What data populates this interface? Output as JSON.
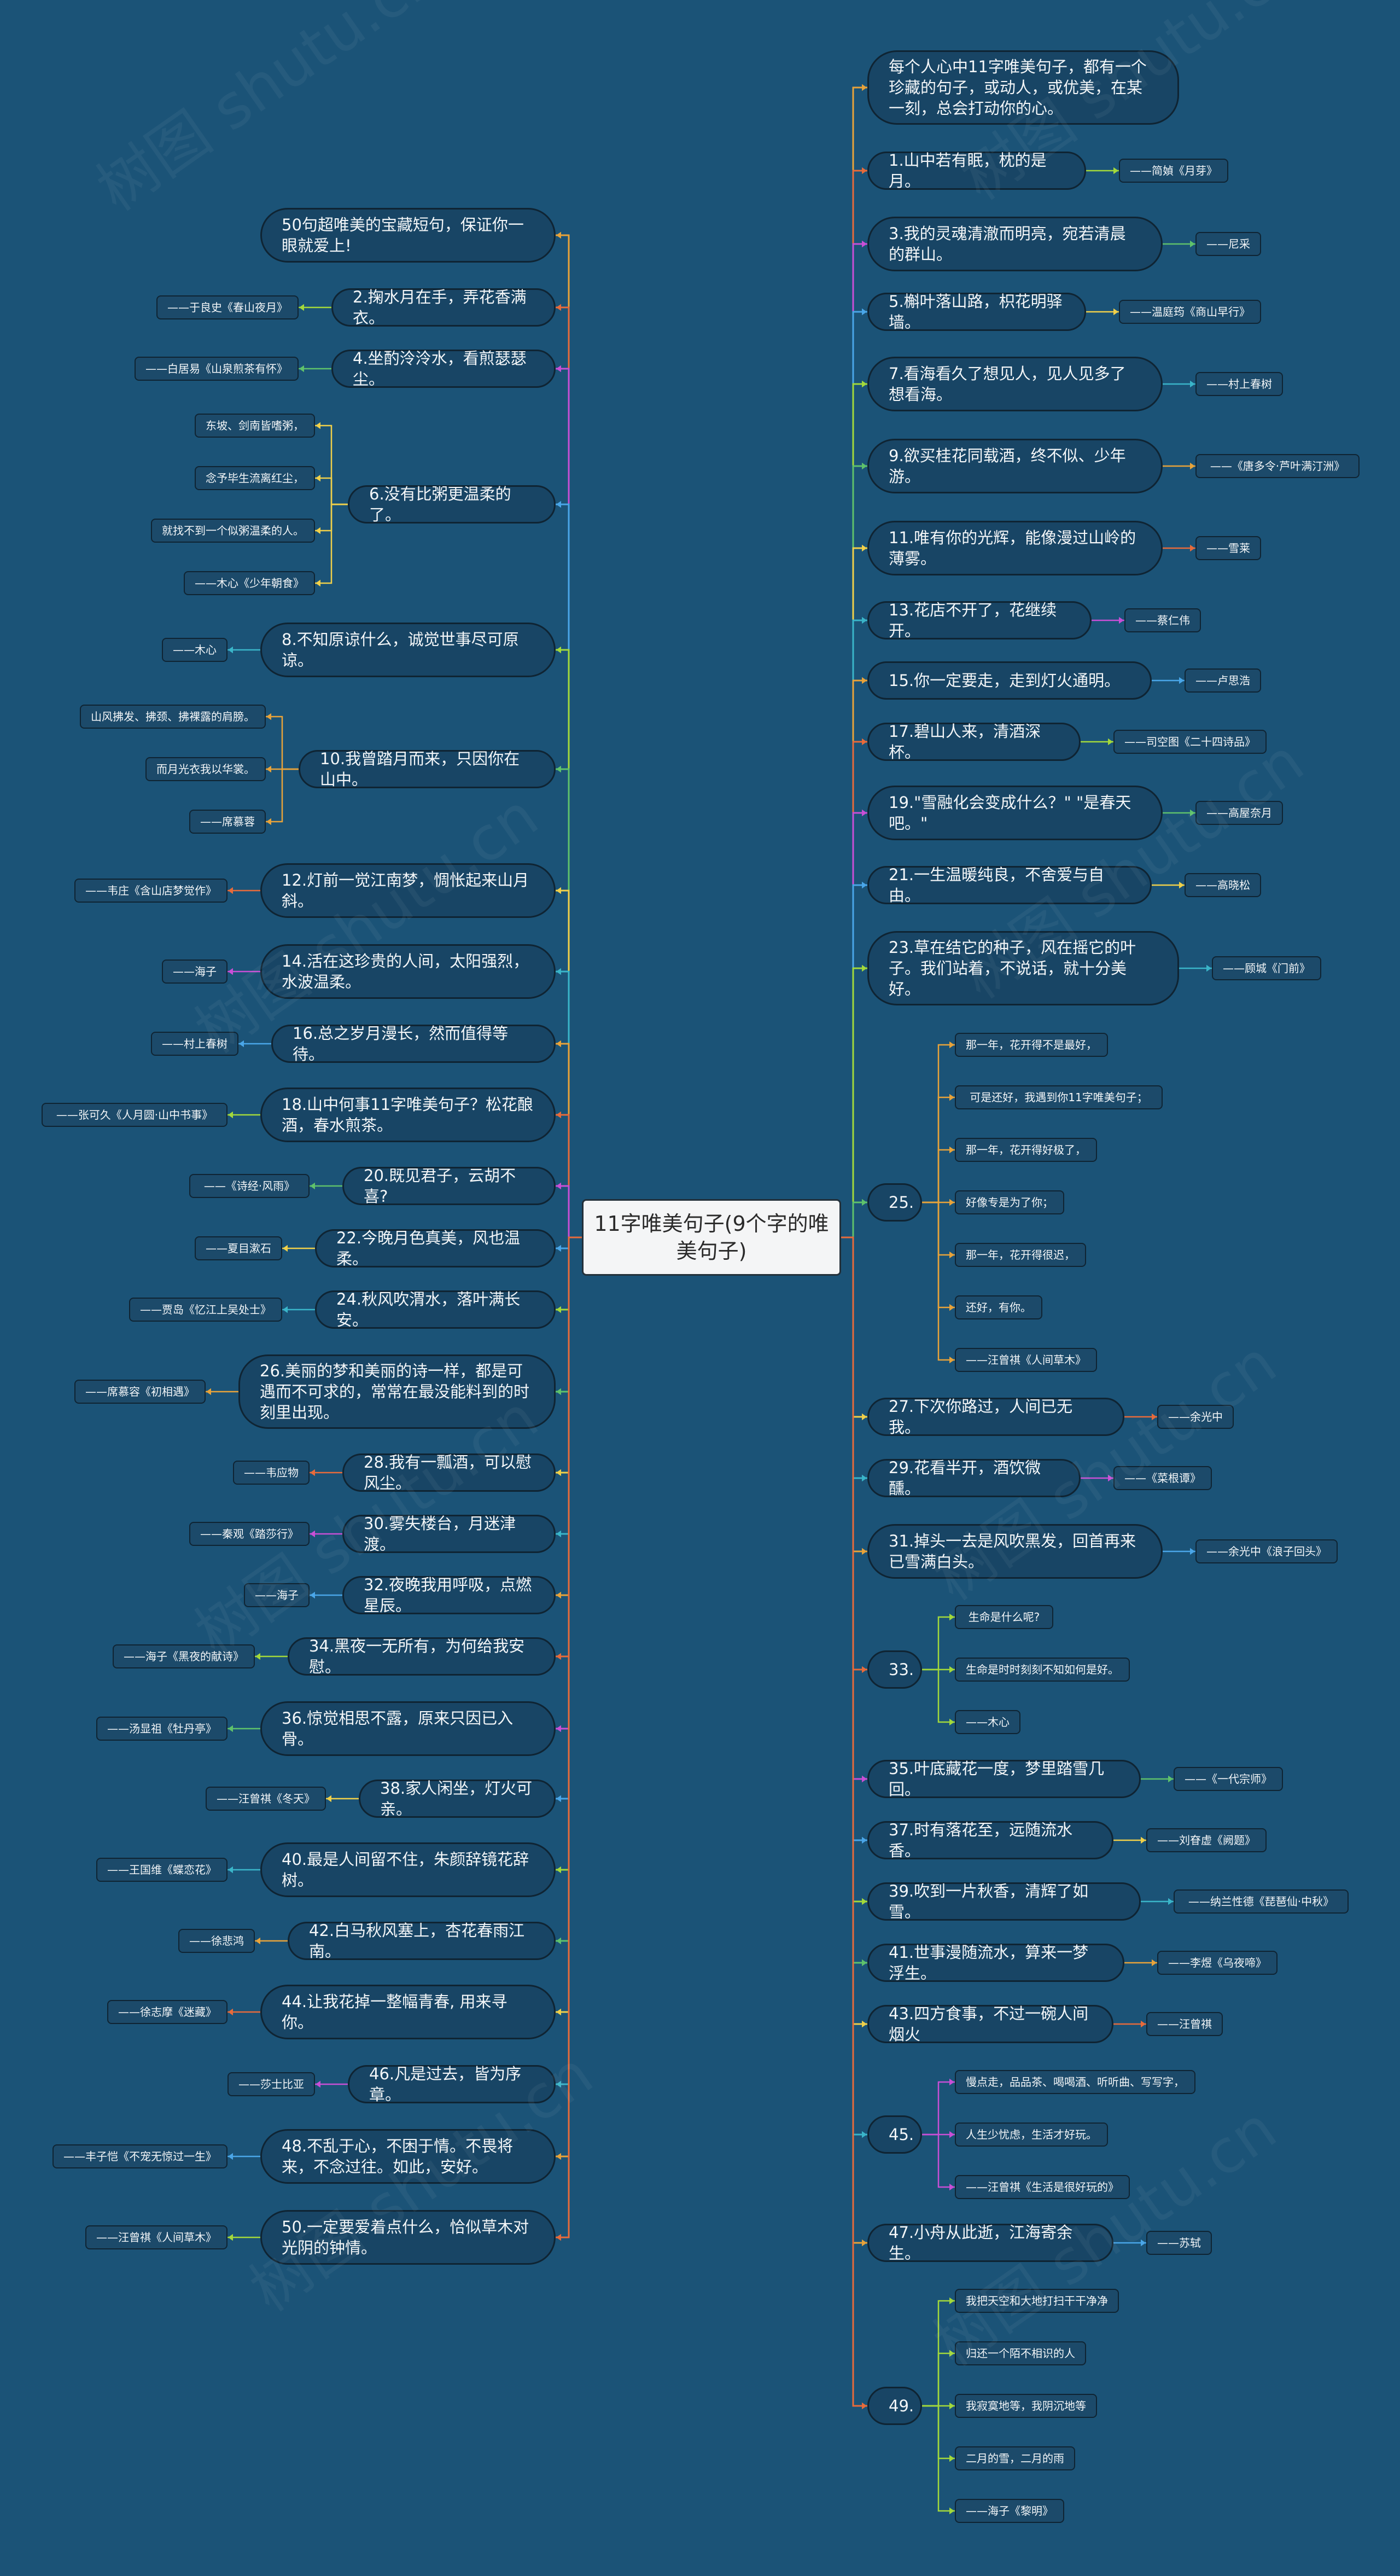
{
  "root": {
    "label": "11字唯美句子(9个字的唯美句子)"
  },
  "left_branches": [
    {
      "id": "L1",
      "text": "50句超唯美的宝藏短句，保证你一眼就爱上!",
      "notes": []
    },
    {
      "id": "L2",
      "text": "2.掬水月在手，弄花香满衣。",
      "notes": [
        "——于良史《春山夜月》"
      ]
    },
    {
      "id": "L3",
      "text": "4.坐酌泠泠水，看煎瑟瑟尘。",
      "notes": [
        "——白居易《山泉煎茶有怀》"
      ]
    },
    {
      "id": "L4",
      "text": "6.没有比粥更温柔的了。",
      "notes": [
        "东坡、剑南皆嗜粥，",
        "念予毕生流离红尘，",
        "就找不到一个似粥温柔的人。",
        "——木心《少年朝食》"
      ]
    },
    {
      "id": "L5",
      "text": "8.不知原谅什么，诚觉世事尽可原谅。",
      "notes": [
        "——木心"
      ]
    },
    {
      "id": "L6",
      "text": "10.我曾踏月而来，只因你在山中。",
      "notes": [
        "山风拂发、拂颈、拂裸露的肩膀。",
        "而月光衣我以华裳。",
        "——席慕蓉"
      ]
    },
    {
      "id": "L7",
      "text": "12.灯前一觉江南梦，惆怅起来山月斜。",
      "notes": [
        "——韦庄《含山店梦觉作》"
      ]
    },
    {
      "id": "L8",
      "text": "14.活在这珍贵的人间，太阳强烈，水波温柔。",
      "notes": [
        "——海子"
      ]
    },
    {
      "id": "L9",
      "text": "16.总之岁月漫长，然而值得等待。",
      "notes": [
        "——村上春树"
      ]
    },
    {
      "id": "L10",
      "text": "18.山中何事11字唯美句子？松花酿酒，春水煎茶。",
      "notes": [
        "——张可久《人月圆·山中书事》"
      ]
    },
    {
      "id": "L11",
      "text": "20.既见君子，云胡不喜?",
      "notes": [
        "——《诗经·风雨》"
      ]
    },
    {
      "id": "L12",
      "text": "22.今晚月色真美，风也温柔。",
      "notes": [
        "——夏目漱石"
      ]
    },
    {
      "id": "L13",
      "text": "24.秋风吹渭水，落叶满长安。",
      "notes": [
        "——贾岛《忆江上吴处士》"
      ]
    },
    {
      "id": "L14",
      "text": "26.美丽的梦和美丽的诗一样，都是可遇而不可求的，常常在最没能料到的时刻里出现。",
      "notes": [
        "——席慕容《初相遇》"
      ]
    },
    {
      "id": "L15",
      "text": "28.我有一瓢酒，可以慰风尘。",
      "notes": [
        "——韦应物"
      ]
    },
    {
      "id": "L16",
      "text": "30.雾失楼台，月迷津渡。",
      "notes": [
        "——秦观《踏莎行》"
      ]
    },
    {
      "id": "L17",
      "text": "32.夜晚我用呼吸，点燃星辰。",
      "notes": [
        "——海子"
      ]
    },
    {
      "id": "L18",
      "text": "34.黑夜一无所有，为何给我安慰。",
      "notes": [
        "——海子《黑夜的献诗》"
      ]
    },
    {
      "id": "L19",
      "text": "36.惊觉相思不露，原来只因已入骨。",
      "notes": [
        "——汤显祖《牡丹亭》"
      ]
    },
    {
      "id": "L20",
      "text": "38.家人闲坐，灯火可亲。",
      "notes": [
        "——汪曾祺《冬天》"
      ]
    },
    {
      "id": "L21",
      "text": "40.最是人间留不住，朱颜辞镜花辞树。",
      "notes": [
        "——王国维《蝶恋花》"
      ]
    },
    {
      "id": "L22",
      "text": "42.白马秋风塞上，杏花春雨江南。",
      "notes": [
        "——徐悲鸿"
      ]
    },
    {
      "id": "L23",
      "text": "44.让我花掉一整幅青春, 用来寻你。",
      "notes": [
        "——徐志摩《迷藏》"
      ]
    },
    {
      "id": "L24",
      "text": "46.凡是过去，皆为序章。",
      "notes": [
        "——莎士比亚"
      ]
    },
    {
      "id": "L25",
      "text": "48.不乱于心，不困于情。不畏将来，不念过往。如此，安好。",
      "notes": [
        "——丰子恺《不宠无惊过一生》"
      ]
    },
    {
      "id": "L26",
      "text": "50.一定要爱着点什么，恰似草木对光阴的钟情。",
      "notes": [
        "——汪曾祺《人间草木》"
      ]
    }
  ],
  "right_branches": [
    {
      "id": "R1",
      "text": "每个人心中11字唯美句子，都有一个珍藏的句子，或动人，或优美，在某一刻，总会打动你的心。",
      "notes": []
    },
    {
      "id": "R2",
      "text": "1.山中若有眠，枕的是月。",
      "notes": [
        "——简媜《月芽》"
      ]
    },
    {
      "id": "R3",
      "text": "3.我的灵魂清澈而明亮，宛若清晨的群山。",
      "notes": [
        "——尼采"
      ]
    },
    {
      "id": "R4",
      "text": "5.槲叶落山路，枳花明驿墙。",
      "notes": [
        "——温庭筠《商山早行》"
      ]
    },
    {
      "id": "R5",
      "text": "7.看海看久了想见人，见人见多了想看海。",
      "notes": [
        "——村上春树"
      ]
    },
    {
      "id": "R6",
      "text": "9.欲买桂花同载酒，终不似、少年游。",
      "notes": [
        "——《唐多令·芦叶满汀洲》"
      ]
    },
    {
      "id": "R7",
      "text": "11.唯有你的光辉，能像漫过山岭的薄雾。",
      "notes": [
        "——雪莱"
      ]
    },
    {
      "id": "R8",
      "text": "13.花店不开了，花继续开。",
      "notes": [
        "——蔡仁伟"
      ]
    },
    {
      "id": "R9",
      "text": "15.你一定要走，走到灯火通明。",
      "notes": [
        "——卢思浩"
      ]
    },
    {
      "id": "R10",
      "text": "17.碧山人来，清酒深杯。",
      "notes": [
        "——司空图《二十四诗品》"
      ]
    },
    {
      "id": "R11",
      "text": "19.\"雪融化会变成什么？\" \"是春天吧。\"",
      "notes": [
        "——高屋奈月"
      ]
    },
    {
      "id": "R12",
      "text": "21.一生温暖纯良，不舍爱与自由。",
      "notes": [
        "——高晓松"
      ]
    },
    {
      "id": "R13",
      "text": "23.草在结它的种子，风在摇它的叶子。我们站着，不说话，就十分美好。",
      "notes": [
        "——顾城《门前》"
      ]
    },
    {
      "id": "R14",
      "text": "25.",
      "notes": [
        "那一年，花开得不是最好，",
        "可是还好，我遇到你11字唯美句子；",
        "那一年，花开得好极了，",
        "好像专是为了你；",
        "那一年，花开得很迟，",
        "还好，有你。",
        "——汪曾祺《人间草木》"
      ]
    },
    {
      "id": "R15",
      "text": "27.下次你路过，人间已无我。",
      "notes": [
        "——余光中"
      ]
    },
    {
      "id": "R16",
      "text": "29.花看半开，酒饮微醺。",
      "notes": [
        "——《菜根谭》"
      ]
    },
    {
      "id": "R17",
      "text": "31.掉头一去是风吹黑发，回首再来已雪满白头。",
      "notes": [
        "——余光中《浪子回头》"
      ]
    },
    {
      "id": "R18",
      "text": "33.",
      "notes": [
        "生命是什么呢?",
        "生命是时时刻刻不知如何是好。",
        "——木心"
      ]
    },
    {
      "id": "R19",
      "text": "35.叶底藏花一度，梦里踏雪几回。",
      "notes": [
        "——《一代宗师》"
      ]
    },
    {
      "id": "R20",
      "text": "37.时有落花至，远随流水香。",
      "notes": [
        "——刘眘虚《阙题》"
      ]
    },
    {
      "id": "R21",
      "text": "39.吹到一片秋香，清辉了如雪。",
      "notes": [
        "——纳兰性德《琵琶仙·中秋》"
      ]
    },
    {
      "id": "R22",
      "text": "41.世事漫随流水，算来一梦浮生。",
      "notes": [
        "——李煜《乌夜啼》"
      ]
    },
    {
      "id": "R23",
      "text": "43.四方食事，不过一碗人间烟火",
      "notes": [
        "——汪曾祺"
      ]
    },
    {
      "id": "R24",
      "text": "45.",
      "notes": [
        "慢点走，品品茶、喝喝酒、听听曲、写写字，",
        "人生少忧虑，生活才好玩。",
        "——汪曾祺《生活是很好玩的》"
      ]
    },
    {
      "id": "R25",
      "text": "47.小舟从此逝，江海寄余生。",
      "notes": [
        "——苏轼"
      ]
    },
    {
      "id": "R26",
      "text": "49.",
      "notes": [
        "我把天空和大地打扫干干净净",
        "归还一个陌不相识的人",
        "我寂寞地等，我阴沉地等",
        "二月的雪，二月的雨",
        "——海子《黎明》"
      ]
    }
  ],
  "watermark": "树图 shutu.cn",
  "colors": {
    "background": "#1b5377",
    "branch_fill": "#184565",
    "node_border": "#0f2433",
    "palette": [
      "#e8a33a",
      "#e76b3b",
      "#c94fd6",
      "#4aa6e8",
      "#a3d93b",
      "#5fc26b",
      "#f0d04a",
      "#3ab5c9"
    ]
  }
}
